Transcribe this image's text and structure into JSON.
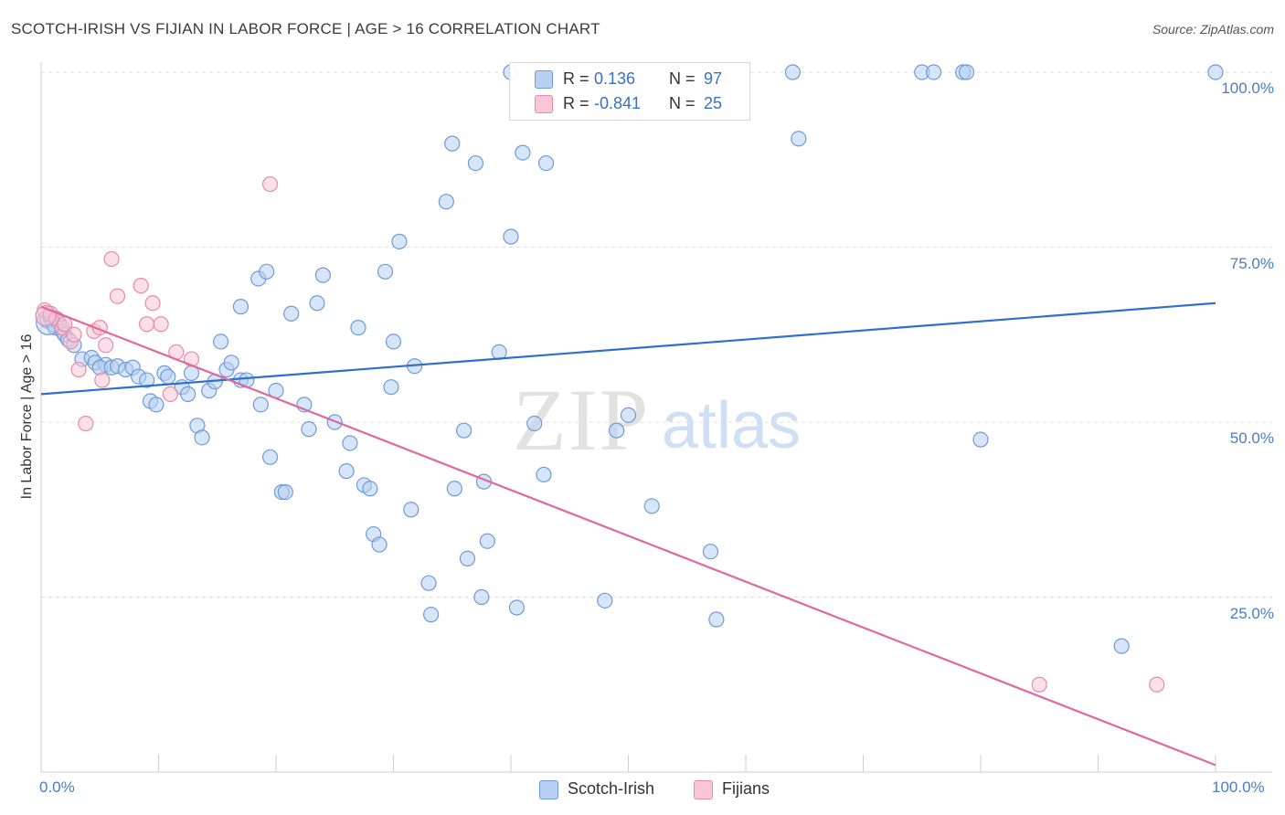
{
  "header": {
    "title": "SCOTCH-IRISH VS FIJIAN IN LABOR FORCE | AGE > 16 CORRELATION CHART",
    "source": "Source: ZipAtlas.com"
  },
  "watermark": {
    "zip": "ZIP",
    "atlas": "atlas"
  },
  "legend": {
    "series": [
      {
        "r_label": "R =",
        "r_value": "0.136",
        "n_label": "N =",
        "n_value": "97"
      },
      {
        "r_label": "R =",
        "r_value": "-0.841",
        "n_label": "N =",
        "n_value": "25"
      }
    ]
  },
  "bottom_legend": [
    {
      "label": "Scotch-Irish"
    },
    {
      "label": "Fijians"
    }
  ],
  "colors": {
    "blue_fill": "#b7d0f3",
    "blue_stroke": "#6f9ad9",
    "blue_line": "#2f6fce",
    "pink_fill": "#f8c6d6",
    "pink_stroke": "#e98aaa",
    "pink_line": "#e0689a",
    "grid": "#dddddd",
    "tick_text": "#4a7cc9"
  },
  "chart_data": {
    "type": "scatter",
    "title": "SCOTCH-IRISH VS FIJIAN IN LABOR FORCE | AGE > 16 CORRELATION CHART",
    "xlabel": "",
    "ylabel": "In Labor Force | Age > 16",
    "xlim": [
      0,
      100
    ],
    "ylim": [
      0,
      104
    ],
    "x_tick_labels": [
      {
        "value": 0,
        "label": "0.0%"
      },
      {
        "value": 100,
        "label": "100.0%"
      }
    ],
    "y_tick_labels": [
      {
        "value": 25,
        "label": "25.0%"
      },
      {
        "value": 50,
        "label": "50.0%"
      },
      {
        "value": 75,
        "label": "75.0%"
      },
      {
        "value": 100,
        "label": "100.0%"
      }
    ],
    "series": [
      {
        "name": "Scotch-Irish",
        "r": 0.136,
        "n": 97,
        "trend": {
          "x": [
            0,
            100
          ],
          "y": [
            54.0,
            67.0
          ]
        },
        "points": [
          [
            0.5,
            64.5
          ],
          [
            0.8,
            65.0
          ],
          [
            1.0,
            64.0
          ],
          [
            1.2,
            63.5
          ],
          [
            1.5,
            64.2
          ],
          [
            1.8,
            63.0
          ],
          [
            2.0,
            62.5
          ],
          [
            2.3,
            61.8
          ],
          [
            2.8,
            61.0
          ],
          [
            3.5,
            59.0
          ],
          [
            4.3,
            59.2
          ],
          [
            4.6,
            58.5
          ],
          [
            5.5,
            58.2
          ],
          [
            5.0,
            57.8
          ],
          [
            6.0,
            57.8
          ],
          [
            6.5,
            58.0
          ],
          [
            7.2,
            57.5
          ],
          [
            7.8,
            57.8
          ],
          [
            8.3,
            56.5
          ],
          [
            9.0,
            56.0
          ],
          [
            9.3,
            53.0
          ],
          [
            9.8,
            52.5
          ],
          [
            10.5,
            57.0
          ],
          [
            10.8,
            56.5
          ],
          [
            12.0,
            55.0
          ],
          [
            12.5,
            54.0
          ],
          [
            12.8,
            57.0
          ],
          [
            13.3,
            49.5
          ],
          [
            13.7,
            47.8
          ],
          [
            14.3,
            54.5
          ],
          [
            14.8,
            55.8
          ],
          [
            15.3,
            61.5
          ],
          [
            15.8,
            57.5
          ],
          [
            16.2,
            58.5
          ],
          [
            17.0,
            56.0
          ],
          [
            17.5,
            56.0
          ],
          [
            17.0,
            66.5
          ],
          [
            18.5,
            70.5
          ],
          [
            19.2,
            71.5
          ],
          [
            18.7,
            52.5
          ],
          [
            19.5,
            45.0
          ],
          [
            20.0,
            54.5
          ],
          [
            20.5,
            40.0
          ],
          [
            20.8,
            40.0
          ],
          [
            21.3,
            65.5
          ],
          [
            22.4,
            52.5
          ],
          [
            22.8,
            49.0
          ],
          [
            23.5,
            67.0
          ],
          [
            24.0,
            71.0
          ],
          [
            25.0,
            50.0
          ],
          [
            26.0,
            43.0
          ],
          [
            26.3,
            47.0
          ],
          [
            27.0,
            63.5
          ],
          [
            27.5,
            41.0
          ],
          [
            28.0,
            40.5
          ],
          [
            28.3,
            34.0
          ],
          [
            28.8,
            32.5
          ],
          [
            29.3,
            71.5
          ],
          [
            29.8,
            55.0
          ],
          [
            30.0,
            61.5
          ],
          [
            30.5,
            75.8
          ],
          [
            31.5,
            37.5
          ],
          [
            31.8,
            58.0
          ],
          [
            33.0,
            27.0
          ],
          [
            33.2,
            22.5
          ],
          [
            34.5,
            81.5
          ],
          [
            35.0,
            89.8
          ],
          [
            35.2,
            40.5
          ],
          [
            36.0,
            48.8
          ],
          [
            36.3,
            30.5
          ],
          [
            37.0,
            87.0
          ],
          [
            37.5,
            25.0
          ],
          [
            37.7,
            41.5
          ],
          [
            38.0,
            33.0
          ],
          [
            39.0,
            60.0
          ],
          [
            40.0,
            100.0
          ],
          [
            40.0,
            76.5
          ],
          [
            40.5,
            23.5
          ],
          [
            41.0,
            88.5
          ],
          [
            42.0,
            49.8
          ],
          [
            42.8,
            42.5
          ],
          [
            43.0,
            87.0
          ],
          [
            48.0,
            24.5
          ],
          [
            49.0,
            48.8
          ],
          [
            50.0,
            51.0
          ],
          [
            52.0,
            38.0
          ],
          [
            57.0,
            31.5
          ],
          [
            57.5,
            21.8
          ],
          [
            64.0,
            100.0
          ],
          [
            64.5,
            90.5
          ],
          [
            75.0,
            100.0
          ],
          [
            76.0,
            100.0
          ],
          [
            78.5,
            100.0
          ],
          [
            78.8,
            100.0
          ],
          [
            80.0,
            47.5
          ],
          [
            92.0,
            18.0
          ],
          [
            100.0,
            100.0
          ]
        ]
      },
      {
        "name": "Fijians",
        "r": -0.841,
        "n": 25,
        "trend": {
          "x": [
            0,
            100
          ],
          "y": [
            66.5,
            1.0
          ]
        },
        "points": [
          [
            0.3,
            66.0
          ],
          [
            0.8,
            65.5
          ],
          [
            1.3,
            64.8
          ],
          [
            1.8,
            63.5
          ],
          [
            2.0,
            64.0
          ],
          [
            2.5,
            61.5
          ],
          [
            2.8,
            62.5
          ],
          [
            3.2,
            57.5
          ],
          [
            3.8,
            49.8
          ],
          [
            4.5,
            63.0
          ],
          [
            5.0,
            63.5
          ],
          [
            5.5,
            61.0
          ],
          [
            5.2,
            56.0
          ],
          [
            6.0,
            73.3
          ],
          [
            6.5,
            68.0
          ],
          [
            8.5,
            69.5
          ],
          [
            9.0,
            64.0
          ],
          [
            9.5,
            67.0
          ],
          [
            10.2,
            64.0
          ],
          [
            11.0,
            54.0
          ],
          [
            11.5,
            60.0
          ],
          [
            12.8,
            59.0
          ],
          [
            19.5,
            84.0
          ],
          [
            85.0,
            12.5
          ],
          [
            95.0,
            12.5
          ]
        ]
      }
    ]
  }
}
